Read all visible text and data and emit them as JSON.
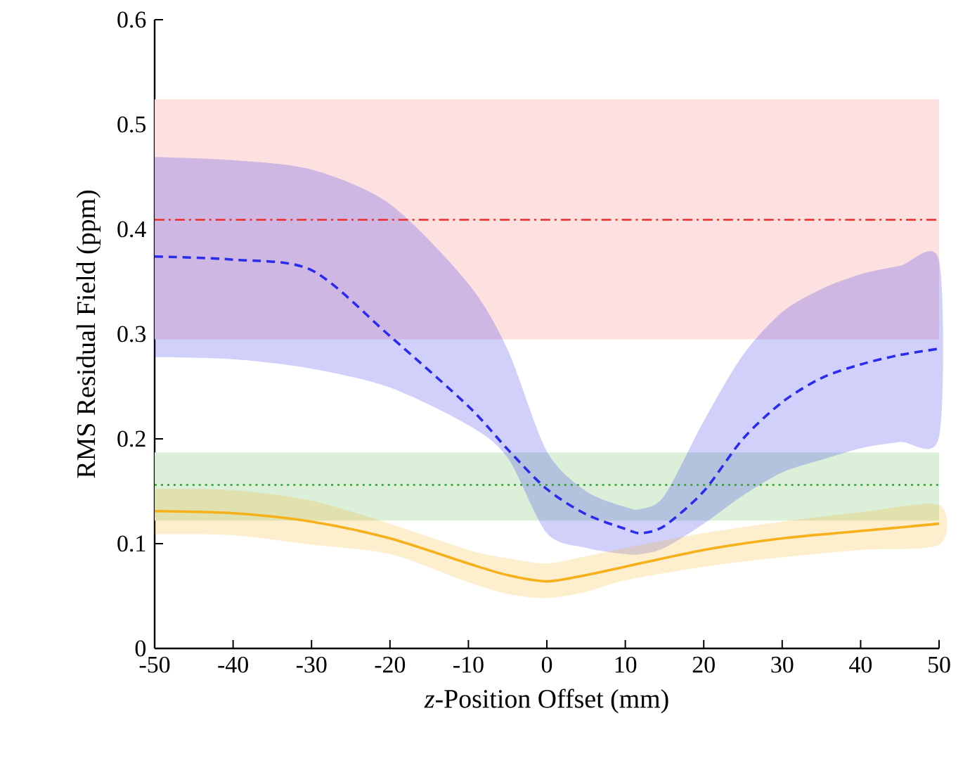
{
  "chart_data": {
    "type": "line",
    "xlabel": "*z*-Position Offset (mm)",
    "ylabel": "RMS Residual Field (ppm)",
    "xlim": [
      -50,
      50
    ],
    "ylim": [
      0,
      0.6
    ],
    "xticks": [
      -50,
      -40,
      -30,
      -20,
      -10,
      0,
      10,
      20,
      30,
      40,
      50
    ],
    "yticks": [
      0,
      0.1,
      0.2,
      0.3,
      0.4,
      0.5,
      0.6
    ],
    "bands": [
      {
        "axis": "y",
        "from": 0.295,
        "to": 0.524,
        "color": "#fde0e0"
      },
      {
        "axis": "y",
        "from": 0.122,
        "to": 0.187,
        "color": "#dcefd9"
      }
    ],
    "ref_lines": [
      {
        "axis": "y",
        "value": 0.409,
        "color": "#ee2a2a",
        "line_style": "dashdot"
      },
      {
        "axis": "y",
        "value": 0.156,
        "color": "#2ca02c",
        "line_style": "dotted"
      }
    ],
    "series": [
      {
        "color": "#2b2bee",
        "line_style": "dashed",
        "x": [
          -50,
          -40,
          -30,
          -20,
          -10,
          -5,
          0,
          5,
          10,
          12,
          15,
          20,
          25,
          30,
          35,
          40,
          45,
          50
        ],
        "values": [
          0.374,
          0.371,
          0.361,
          0.298,
          0.231,
          0.19,
          0.152,
          0.128,
          0.114,
          0.11,
          0.117,
          0.15,
          0.2,
          0.235,
          0.258,
          0.271,
          0.28,
          0.286
        ],
        "upper": [
          0.469,
          0.466,
          0.457,
          0.424,
          0.348,
          0.285,
          0.188,
          0.15,
          0.135,
          0.133,
          0.146,
          0.217,
          0.28,
          0.321,
          0.343,
          0.357,
          0.365,
          0.37
        ],
        "lower": [
          0.278,
          0.276,
          0.267,
          0.249,
          0.213,
          0.182,
          0.11,
          0.096,
          0.09,
          0.09,
          0.096,
          0.119,
          0.146,
          0.168,
          0.18,
          0.191,
          0.197,
          0.202
        ]
      },
      {
        "color": "#f5b01a",
        "line_style": "solid",
        "x": [
          -50,
          -40,
          -30,
          -20,
          -10,
          -5,
          0,
          5,
          10,
          20,
          30,
          40,
          50
        ],
        "values": [
          0.131,
          0.129,
          0.121,
          0.105,
          0.081,
          0.07,
          0.064,
          0.07,
          0.078,
          0.094,
          0.105,
          0.112,
          0.119
        ],
        "upper": [
          0.152,
          0.151,
          0.141,
          0.119,
          0.094,
          0.086,
          0.081,
          0.088,
          0.096,
          0.11,
          0.121,
          0.13,
          0.137
        ],
        "lower": [
          0.109,
          0.108,
          0.099,
          0.09,
          0.063,
          0.052,
          0.048,
          0.054,
          0.065,
          0.078,
          0.087,
          0.094,
          0.099
        ]
      }
    ]
  }
}
